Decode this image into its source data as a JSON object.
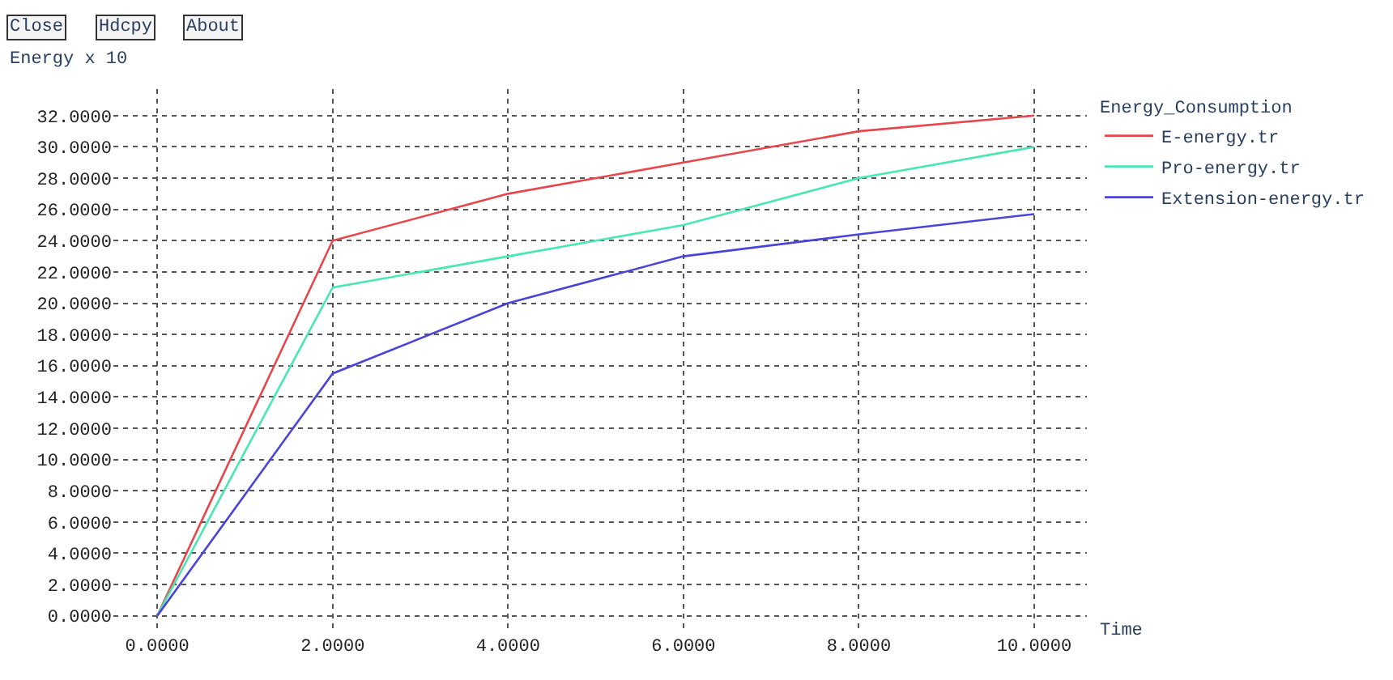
{
  "chart_data": {
    "type": "line",
    "xlabel": "Time",
    "ylabel": "Energy x 10",
    "legend_title": "Energy_Consumption",
    "annotations": [
      "Close",
      "Hdcpy",
      "About"
    ],
    "x": [
      0,
      2,
      4,
      6,
      8,
      10
    ],
    "series": [
      {
        "name": "E-energy.tr",
        "color": "#e8464b",
        "values": [
          0,
          24,
          27,
          29,
          31,
          32
        ]
      },
      {
        "name": "Pro-energy.tr",
        "color": "#48e8b0",
        "values": [
          0,
          21,
          23,
          25,
          28,
          30
        ]
      },
      {
        "name": "Extension-energy.tr",
        "color": "#4a44d8",
        "values": [
          0,
          15.5,
          20,
          23,
          24.4,
          25.7
        ]
      }
    ],
    "xlim": [
      -0.5,
      10.6
    ],
    "ylim": [
      -1,
      33.7
    ],
    "xticks": [
      {
        "value": 0,
        "label": "0.0000"
      },
      {
        "value": 2,
        "label": "2.0000"
      },
      {
        "value": 4,
        "label": "4.0000"
      },
      {
        "value": 6,
        "label": "6.0000"
      },
      {
        "value": 8,
        "label": "8.0000"
      },
      {
        "value": 10,
        "label": "10.0000"
      }
    ],
    "yticks": [
      {
        "value": 0,
        "label": "0.0000"
      },
      {
        "value": 2,
        "label": "2.0000"
      },
      {
        "value": 4,
        "label": "4.0000"
      },
      {
        "value": 6,
        "label": "6.0000"
      },
      {
        "value": 8,
        "label": "8.0000"
      },
      {
        "value": 10,
        "label": "10.0000"
      },
      {
        "value": 12,
        "label": "12.0000"
      },
      {
        "value": 14,
        "label": "14.0000"
      },
      {
        "value": 16,
        "label": "16.0000"
      },
      {
        "value": 18,
        "label": "18.0000"
      },
      {
        "value": 20,
        "label": "20.0000"
      },
      {
        "value": 22,
        "label": "22.0000"
      },
      {
        "value": 24,
        "label": "24.0000"
      },
      {
        "value": 26,
        "label": "26.0000"
      },
      {
        "value": 28,
        "label": "28.0000"
      },
      {
        "value": 30,
        "label": "30.0000"
      },
      {
        "value": 32,
        "label": "32.0000"
      }
    ],
    "grid": true,
    "legend": "top right",
    "marker": "none",
    "line_style": "solid"
  }
}
